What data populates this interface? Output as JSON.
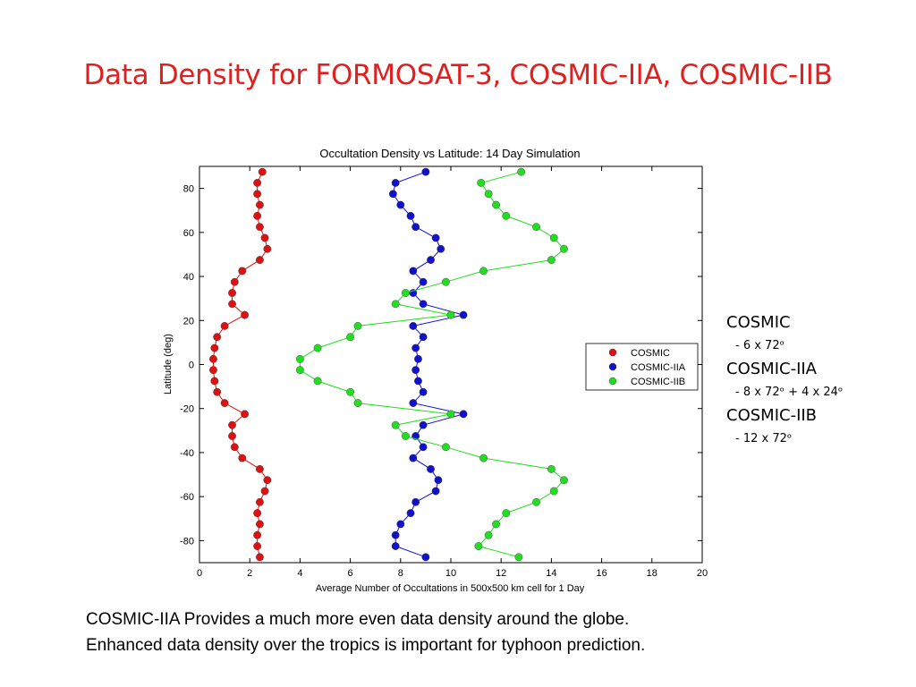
{
  "slide": {
    "title": "Data Density for FORMOSAT-3, COSMIC-IIA, COSMIC-IIB"
  },
  "side_notes": [
    {
      "head": "COSMIC",
      "sub": "- 6 x 72ᵒ"
    },
    {
      "head": "COSMIC-IIA",
      "sub": "- 8 x 72ᵒ + 4 x 24ᵒ"
    },
    {
      "head": "COSMIC-IIB",
      "sub": "- 12 x 72ᵒ"
    }
  ],
  "caption": {
    "line1": "COSMIC-IIA Provides a much more even data density around the globe.",
    "line2": "Enhanced data density over the tropics is important for typhoon prediction."
  },
  "chart_data": {
    "type": "line",
    "title": "Occultation Density vs Latitude: 14 Day Simulation",
    "xlabel": "Average Number of Occultations in 500x500 km cell for 1 Day",
    "ylabel": "Latitude (deg)",
    "xlim": [
      0,
      20
    ],
    "ylim": [
      -90,
      90
    ],
    "xticks": [
      0,
      2,
      4,
      6,
      8,
      10,
      12,
      14,
      16,
      18,
      20
    ],
    "yticks": [
      -80,
      -60,
      -40,
      -20,
      0,
      20,
      40,
      60,
      80
    ],
    "grid": false,
    "legend_position": "center-right",
    "latitudes": [
      87.5,
      82.5,
      77.5,
      72.5,
      67.5,
      62.5,
      57.5,
      52.5,
      47.5,
      42.5,
      37.5,
      32.5,
      27.5,
      22.5,
      17.5,
      12.5,
      7.5,
      2.5,
      -2.5,
      -7.5,
      -12.5,
      -17.5,
      -22.5,
      -27.5,
      -32.5,
      -37.5,
      -42.5,
      -47.5,
      -52.5,
      -57.5,
      -62.5,
      -67.5,
      -72.5,
      -77.5,
      -82.5,
      -87.5
    ],
    "series": [
      {
        "name": "COSMIC",
        "color": "#dd1111",
        "values": [
          2.5,
          2.3,
          2.3,
          2.4,
          2.3,
          2.4,
          2.6,
          2.7,
          2.4,
          1.7,
          1.4,
          1.3,
          1.3,
          1.8,
          1.0,
          0.7,
          0.6,
          0.55,
          0.55,
          0.6,
          0.7,
          1.0,
          1.8,
          1.3,
          1.3,
          1.4,
          1.7,
          2.4,
          2.7,
          2.6,
          2.4,
          2.3,
          2.4,
          2.3,
          2.3,
          2.4
        ]
      },
      {
        "name": "COSMIC-IIA",
        "color": "#1111cc",
        "values": [
          9.0,
          7.8,
          7.7,
          8.0,
          8.4,
          8.6,
          9.4,
          9.6,
          9.2,
          8.5,
          8.9,
          8.5,
          8.9,
          10.5,
          8.5,
          8.9,
          8.6,
          8.7,
          8.6,
          8.7,
          8.9,
          8.5,
          10.5,
          8.9,
          8.6,
          8.9,
          8.5,
          9.2,
          9.5,
          9.4,
          8.6,
          8.4,
          8.0,
          7.8,
          7.8,
          9.0
        ]
      },
      {
        "name": "COSMIC-IIB",
        "color": "#22dd22",
        "values": [
          12.8,
          11.2,
          11.5,
          11.8,
          12.2,
          13.4,
          14.1,
          14.5,
          14.0,
          11.3,
          9.8,
          8.2,
          7.8,
          10.0,
          6.3,
          6.0,
          4.7,
          4.0,
          4.0,
          4.7,
          6.0,
          6.3,
          10.0,
          7.8,
          8.2,
          9.8,
          11.3,
          14.0,
          14.5,
          14.1,
          13.4,
          12.2,
          11.8,
          11.5,
          11.1,
          12.7
        ]
      }
    ]
  }
}
